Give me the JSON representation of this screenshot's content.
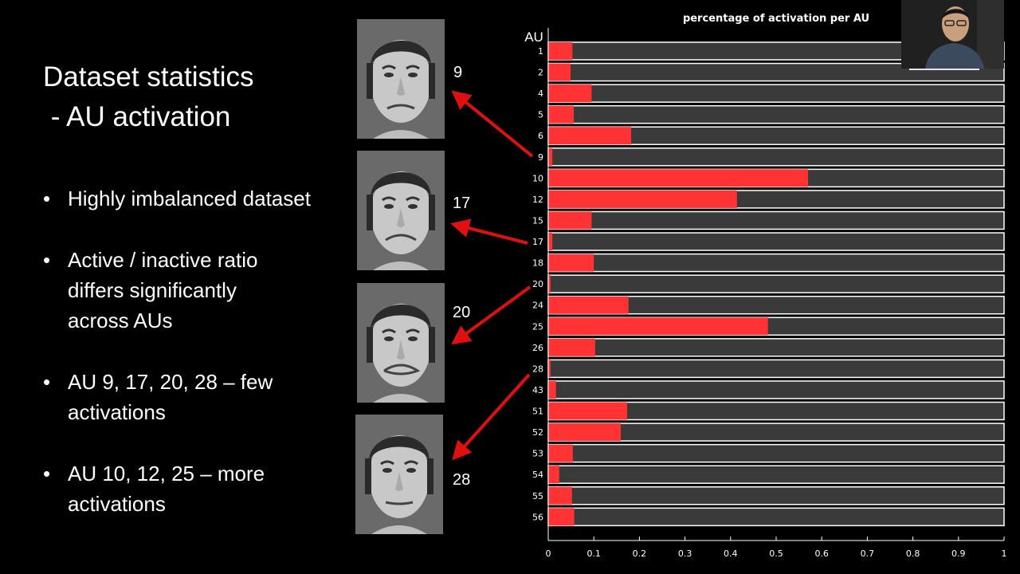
{
  "slide": {
    "title_lines": [
      "Dataset statistics",
      " - AU activation"
    ],
    "bullets": [
      {
        "lines": [
          "Highly imbalanced dataset"
        ]
      },
      {
        "lines": [
          "Active / inactive ratio",
          "differs significantly",
          "across AUs"
        ]
      },
      {
        "lines": [
          "AU 9, 17, 20, 28 – few",
          "activations"
        ]
      },
      {
        "lines": [
          "AU 10, 12, 25 – more",
          "activations"
        ]
      }
    ],
    "bullet_glyph": "•",
    "face_labels": [
      "9",
      "17",
      "20",
      "28"
    ]
  },
  "colors": {
    "background": "#000000",
    "active_bar": "#ff3333",
    "inactive_bar": "#3a3a3a",
    "bar_edge": "#ffffff",
    "arrow": "#e01010"
  },
  "chart_data": {
    "type": "bar",
    "orientation": "horizontal",
    "stacked": true,
    "title": "percentage of activation per AU",
    "ylabel": "AU",
    "xlabel": "",
    "xlim": [
      0,
      1
    ],
    "xticks": [
      "0",
      "0.1",
      "0.2",
      "0.3",
      "0.4",
      "0.5",
      "0.6",
      "0.7",
      "0.8",
      "0.9",
      "1"
    ],
    "categories": [
      "1",
      "2",
      "4",
      "5",
      "6",
      "9",
      "10",
      "12",
      "15",
      "17",
      "18",
      "20",
      "24",
      "25",
      "26",
      "28",
      "43",
      "51",
      "52",
      "53",
      "54",
      "55",
      "56"
    ],
    "values": [
      0.053,
      0.049,
      0.095,
      0.056,
      0.182,
      0.009,
      0.57,
      0.414,
      0.095,
      0.009,
      0.1,
      0.005,
      0.176,
      0.482,
      0.103,
      0.005,
      0.017,
      0.173,
      0.159,
      0.054,
      0.024,
      0.052,
      0.057
    ],
    "grid": false,
    "legend": "none"
  }
}
